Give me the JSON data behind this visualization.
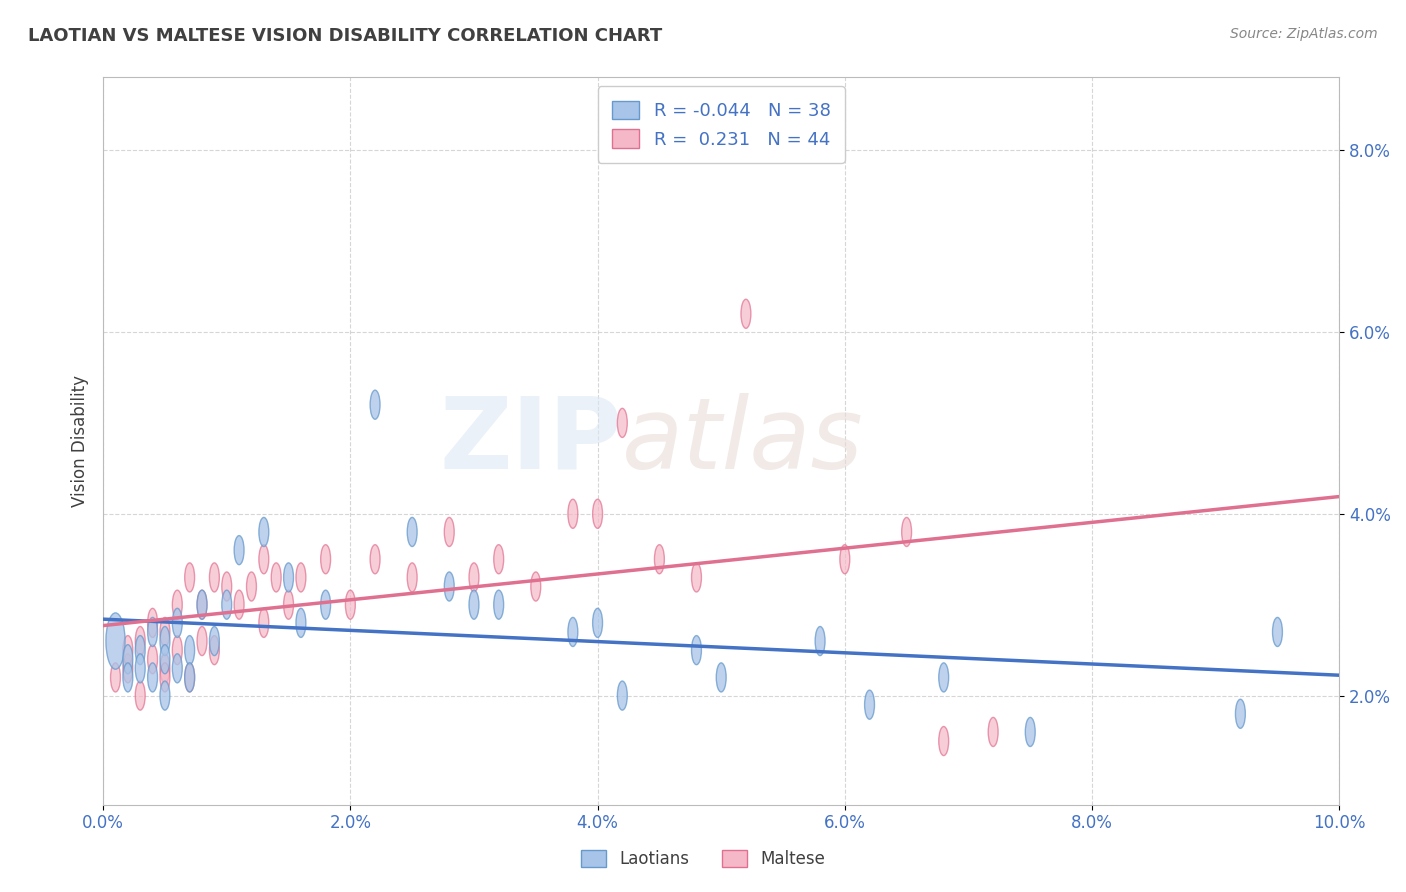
{
  "title": "LAOTIAN VS MALTESE VISION DISABILITY CORRELATION CHART",
  "source": "Source: ZipAtlas.com",
  "ylabel": "Vision Disability",
  "xlim": [
    0.0,
    0.1
  ],
  "ylim": [
    0.008,
    0.088
  ],
  "xticks": [
    0.0,
    0.02,
    0.04,
    0.06,
    0.08,
    0.1
  ],
  "yticks": [
    0.02,
    0.04,
    0.06,
    0.08
  ],
  "ytick_labels": [
    "2.0%",
    "4.0%",
    "6.0%",
    "8.0%"
  ],
  "xtick_labels": [
    "0.0%",
    "2.0%",
    "4.0%",
    "6.0%",
    "8.0%",
    "10.0%"
  ],
  "blue_color": "#a8c4e8",
  "pink_color": "#f5b8c8",
  "blue_edge_color": "#6699cc",
  "pink_edge_color": "#e07090",
  "blue_line_color": "#4472c4",
  "pink_line_color": "#e07090",
  "legend_R_blue": "-0.044",
  "legend_N_blue": "38",
  "legend_R_pink": "0.231",
  "legend_N_pink": "44",
  "title_color": "#404040",
  "axis_color": "#404040",
  "grid_color": "#cccccc",
  "label_color": "#4472c4",
  "blue_x": [
    0.001,
    0.002,
    0.002,
    0.003,
    0.003,
    0.004,
    0.004,
    0.005,
    0.005,
    0.005,
    0.006,
    0.006,
    0.007,
    0.007,
    0.008,
    0.009,
    0.01,
    0.011,
    0.013,
    0.015,
    0.016,
    0.018,
    0.022,
    0.025,
    0.028,
    0.03,
    0.032,
    0.038,
    0.04,
    0.042,
    0.048,
    0.05,
    0.058,
    0.062,
    0.068,
    0.075,
    0.092,
    0.095
  ],
  "blue_y": [
    0.026,
    0.024,
    0.022,
    0.025,
    0.023,
    0.027,
    0.022,
    0.026,
    0.024,
    0.02,
    0.028,
    0.023,
    0.025,
    0.022,
    0.03,
    0.026,
    0.03,
    0.036,
    0.038,
    0.033,
    0.028,
    0.03,
    0.052,
    0.038,
    0.032,
    0.03,
    0.03,
    0.027,
    0.028,
    0.02,
    0.025,
    0.022,
    0.026,
    0.019,
    0.022,
    0.016,
    0.018,
    0.027
  ],
  "blue_sizes": [
    300,
    80,
    80,
    80,
    80,
    80,
    80,
    80,
    80,
    80,
    80,
    80,
    80,
    80,
    80,
    80,
    80,
    80,
    80,
    80,
    80,
    80,
    80,
    80,
    80,
    80,
    80,
    80,
    80,
    80,
    80,
    80,
    80,
    80,
    80,
    80,
    80,
    80
  ],
  "pink_x": [
    0.001,
    0.002,
    0.002,
    0.003,
    0.003,
    0.004,
    0.004,
    0.005,
    0.005,
    0.005,
    0.006,
    0.006,
    0.007,
    0.007,
    0.008,
    0.008,
    0.009,
    0.009,
    0.01,
    0.011,
    0.012,
    0.013,
    0.013,
    0.014,
    0.015,
    0.016,
    0.018,
    0.02,
    0.022,
    0.025,
    0.028,
    0.03,
    0.032,
    0.035,
    0.038,
    0.04,
    0.042,
    0.045,
    0.048,
    0.052,
    0.06,
    0.065,
    0.068,
    0.072
  ],
  "pink_y": [
    0.022,
    0.023,
    0.025,
    0.02,
    0.026,
    0.024,
    0.028,
    0.023,
    0.027,
    0.022,
    0.03,
    0.025,
    0.033,
    0.022,
    0.03,
    0.026,
    0.033,
    0.025,
    0.032,
    0.03,
    0.032,
    0.035,
    0.028,
    0.033,
    0.03,
    0.033,
    0.035,
    0.03,
    0.035,
    0.033,
    0.038,
    0.033,
    0.035,
    0.032,
    0.04,
    0.04,
    0.05,
    0.035,
    0.033,
    0.062,
    0.035,
    0.038,
    0.015,
    0.016
  ],
  "pink_sizes": [
    80,
    80,
    80,
    80,
    80,
    80,
    80,
    80,
    80,
    80,
    80,
    80,
    80,
    80,
    80,
    80,
    80,
    80,
    80,
    80,
    80,
    80,
    80,
    80,
    80,
    80,
    80,
    80,
    80,
    80,
    80,
    80,
    80,
    80,
    80,
    80,
    80,
    80,
    80,
    80,
    80,
    80,
    80,
    80
  ]
}
